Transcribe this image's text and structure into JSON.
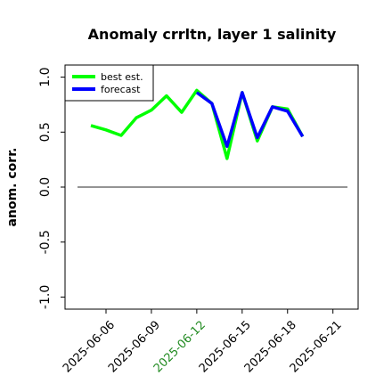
{
  "chart_data": {
    "type": "line",
    "title": "Anomaly crrltn, layer 1 salinity",
    "y_label": "anom. corr.",
    "x": [
      "2025-06-05",
      "2025-06-06",
      "2025-06-07",
      "2025-06-08",
      "2025-06-09",
      "2025-06-10",
      "2025-06-11",
      "2025-06-12",
      "2025-06-13",
      "2025-06-14",
      "2025-06-15",
      "2025-06-16",
      "2025-06-17",
      "2025-06-18",
      "2025-06-19"
    ],
    "series": [
      {
        "name": "best est.",
        "color": "#00ff00",
        "values": [
          0.56,
          0.52,
          0.47,
          0.63,
          0.7,
          0.83,
          0.68,
          0.88,
          0.76,
          0.26,
          0.86,
          0.42,
          0.73,
          0.71,
          0.46
        ]
      },
      {
        "name": "forecast",
        "color": "#0000ff",
        "values": [
          null,
          null,
          null,
          null,
          null,
          null,
          null,
          0.86,
          0.76,
          0.37,
          0.86,
          0.45,
          0.73,
          0.69,
          0.46
        ]
      }
    ],
    "xlim": [
      "2025-06-03T07:00",
      "2025-06-22T16:00"
    ],
    "xticks": [
      "2025-06-06",
      "2025-06-09",
      "2025-06-12",
      "2025-06-15",
      "2025-06-18",
      "2025-06-21"
    ],
    "highlight_xtick": {
      "index": 2,
      "color": "#228b22"
    },
    "ylim": [
      -1.11,
      1.11
    ],
    "yticks": [
      {
        "value": -1,
        "label": "-1.0"
      },
      {
        "value": -0.5,
        "label": "-0.5"
      },
      {
        "value": 0,
        "label": "0.0"
      },
      {
        "value": 0.5,
        "label": "0.5"
      },
      {
        "value": 1,
        "label": "1.0"
      }
    ],
    "reference_line": 0,
    "legend": "upper left"
  }
}
